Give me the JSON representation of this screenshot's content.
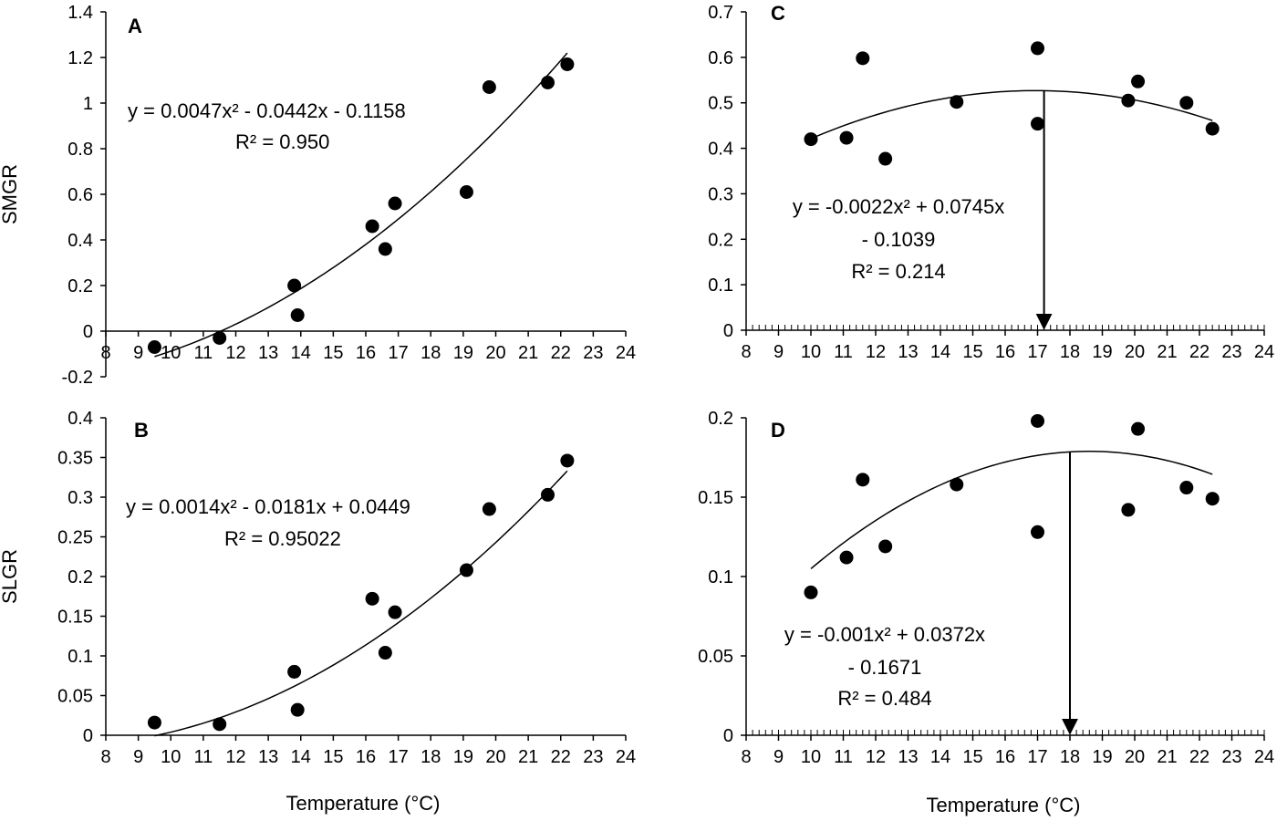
{
  "chart_data": [
    {
      "panel": "A",
      "type": "scatter",
      "label": "A",
      "xlabel": "",
      "ylabel": "SMGR",
      "xlim": [
        8,
        24
      ],
      "ylim": [
        -0.2,
        1.4
      ],
      "xticks": [
        8,
        9,
        10,
        11,
        12,
        13,
        14,
        15,
        16,
        17,
        18,
        19,
        20,
        21,
        22,
        23,
        24
      ],
      "yticks": [
        -0.2,
        0,
        0.2,
        0.4,
        0.6,
        0.8,
        1,
        1.2,
        1.4
      ],
      "ytick_labels": [
        "-0.2",
        "0",
        "0.2",
        "0.4",
        "0.6",
        "0.8",
        "1",
        "1.2",
        "1.4"
      ],
      "points": [
        {
          "x": 9.5,
          "y": -0.07
        },
        {
          "x": 11.5,
          "y": -0.03
        },
        {
          "x": 13.8,
          "y": 0.2
        },
        {
          "x": 13.9,
          "y": 0.07
        },
        {
          "x": 16.2,
          "y": 0.46
        },
        {
          "x": 16.6,
          "y": 0.36
        },
        {
          "x": 16.9,
          "y": 0.56
        },
        {
          "x": 19.1,
          "y": 0.61
        },
        {
          "x": 19.8,
          "y": 1.07
        },
        {
          "x": 21.6,
          "y": 1.09
        },
        {
          "x": 22.2,
          "y": 1.17
        }
      ],
      "fit": {
        "a": 0.0047,
        "b": -0.0442,
        "c": -0.1158,
        "x_start": 9.5,
        "x_end": 22.2
      },
      "arrow_x": null,
      "equation_lines": [
        "y = 0.0047x² - 0.0442x - 0.1158",
        "R² = 0.950"
      ]
    },
    {
      "panel": "B",
      "type": "scatter",
      "label": "B",
      "xlabel": "Temperature (°C)",
      "ylabel": "SLGR",
      "xlim": [
        8,
        24
      ],
      "ylim": [
        0,
        0.4
      ],
      "xticks": [
        8,
        9,
        10,
        11,
        12,
        13,
        14,
        15,
        16,
        17,
        18,
        19,
        20,
        21,
        22,
        23,
        24
      ],
      "yticks": [
        0,
        0.05,
        0.1,
        0.15,
        0.2,
        0.25,
        0.3,
        0.35,
        0.4
      ],
      "ytick_labels": [
        "0",
        "0.05",
        "0.1",
        "0.15",
        "0.2",
        "0.25",
        "0.3",
        "0.35",
        "0.4"
      ],
      "points": [
        {
          "x": 9.5,
          "y": 0.016
        },
        {
          "x": 11.5,
          "y": 0.014
        },
        {
          "x": 13.8,
          "y": 0.08
        },
        {
          "x": 13.9,
          "y": 0.032
        },
        {
          "x": 16.2,
          "y": 0.172
        },
        {
          "x": 16.6,
          "y": 0.104
        },
        {
          "x": 16.9,
          "y": 0.155
        },
        {
          "x": 19.1,
          "y": 0.208
        },
        {
          "x": 19.8,
          "y": 0.285
        },
        {
          "x": 21.6,
          "y": 0.303
        },
        {
          "x": 22.2,
          "y": 0.346
        }
      ],
      "fit": {
        "a": 0.0014,
        "b": -0.0181,
        "c": 0.0449,
        "x_start": 9.5,
        "x_end": 22.2
      },
      "arrow_x": null,
      "equation_lines": [
        "y = 0.0014x² - 0.0181x + 0.0449",
        "R² = 0.95022"
      ]
    },
    {
      "panel": "C",
      "type": "scatter",
      "label": "C",
      "xlabel": "",
      "ylabel": "",
      "xlim": [
        8,
        24
      ],
      "ylim": [
        0,
        0.7
      ],
      "xticks": [
        8,
        9,
        10,
        11,
        12,
        13,
        14,
        15,
        16,
        17,
        18,
        19,
        20,
        21,
        22,
        23,
        24
      ],
      "yticks": [
        0,
        0.1,
        0.2,
        0.3,
        0.4,
        0.5,
        0.6,
        0.7
      ],
      "ytick_labels": [
        "0",
        "0.1",
        "0.2",
        "0.3",
        "0.4",
        "0.5",
        "0.6",
        "0.7"
      ],
      "points": [
        {
          "x": 10,
          "y": 0.42
        },
        {
          "x": 11.1,
          "y": 0.423
        },
        {
          "x": 11.6,
          "y": 0.598
        },
        {
          "x": 12.3,
          "y": 0.377
        },
        {
          "x": 14.5,
          "y": 0.502
        },
        {
          "x": 17,
          "y": 0.62
        },
        {
          "x": 17,
          "y": 0.454
        },
        {
          "x": 19.8,
          "y": 0.505
        },
        {
          "x": 20.1,
          "y": 0.547
        },
        {
          "x": 21.6,
          "y": 0.5
        },
        {
          "x": 22.4,
          "y": 0.443
        }
      ],
      "fit": {
        "a": -0.0022,
        "b": 0.0745,
        "c": -0.1039,
        "x_start": 10,
        "x_end": 22.4
      },
      "arrow_x": 17.2,
      "equation_lines": [
        "y = -0.0022x² + 0.0745x",
        "- 0.1039",
        "R² = 0.214"
      ]
    },
    {
      "panel": "D",
      "type": "scatter",
      "label": "D",
      "xlabel": "Temperature (°C)",
      "ylabel": "",
      "xlim": [
        8,
        24
      ],
      "ylim": [
        0,
        0.2
      ],
      "xticks": [
        8,
        9,
        10,
        11,
        12,
        13,
        14,
        15,
        16,
        17,
        18,
        19,
        20,
        21,
        22,
        23,
        24
      ],
      "yticks": [
        0,
        0.05,
        0.1,
        0.15,
        0.2
      ],
      "ytick_labels": [
        "0",
        "0.05",
        "0.1",
        "0.15",
        "0.2"
      ],
      "points": [
        {
          "x": 10,
          "y": 0.09
        },
        {
          "x": 11.1,
          "y": 0.112
        },
        {
          "x": 11.6,
          "y": 0.161
        },
        {
          "x": 12.3,
          "y": 0.119
        },
        {
          "x": 14.5,
          "y": 0.158
        },
        {
          "x": 17,
          "y": 0.198
        },
        {
          "x": 17,
          "y": 0.128
        },
        {
          "x": 19.8,
          "y": 0.142
        },
        {
          "x": 20.1,
          "y": 0.193
        },
        {
          "x": 21.6,
          "y": 0.156
        },
        {
          "x": 22.4,
          "y": 0.149
        }
      ],
      "fit": {
        "a": -0.001,
        "b": 0.0372,
        "c": -0.1671,
        "x_start": 10,
        "x_end": 22.4
      },
      "arrow_x": 18,
      "equation_lines": [
        "y = -0.001x² + 0.0372x",
        "- 0.1671",
        "R² = 0.484"
      ]
    }
  ]
}
